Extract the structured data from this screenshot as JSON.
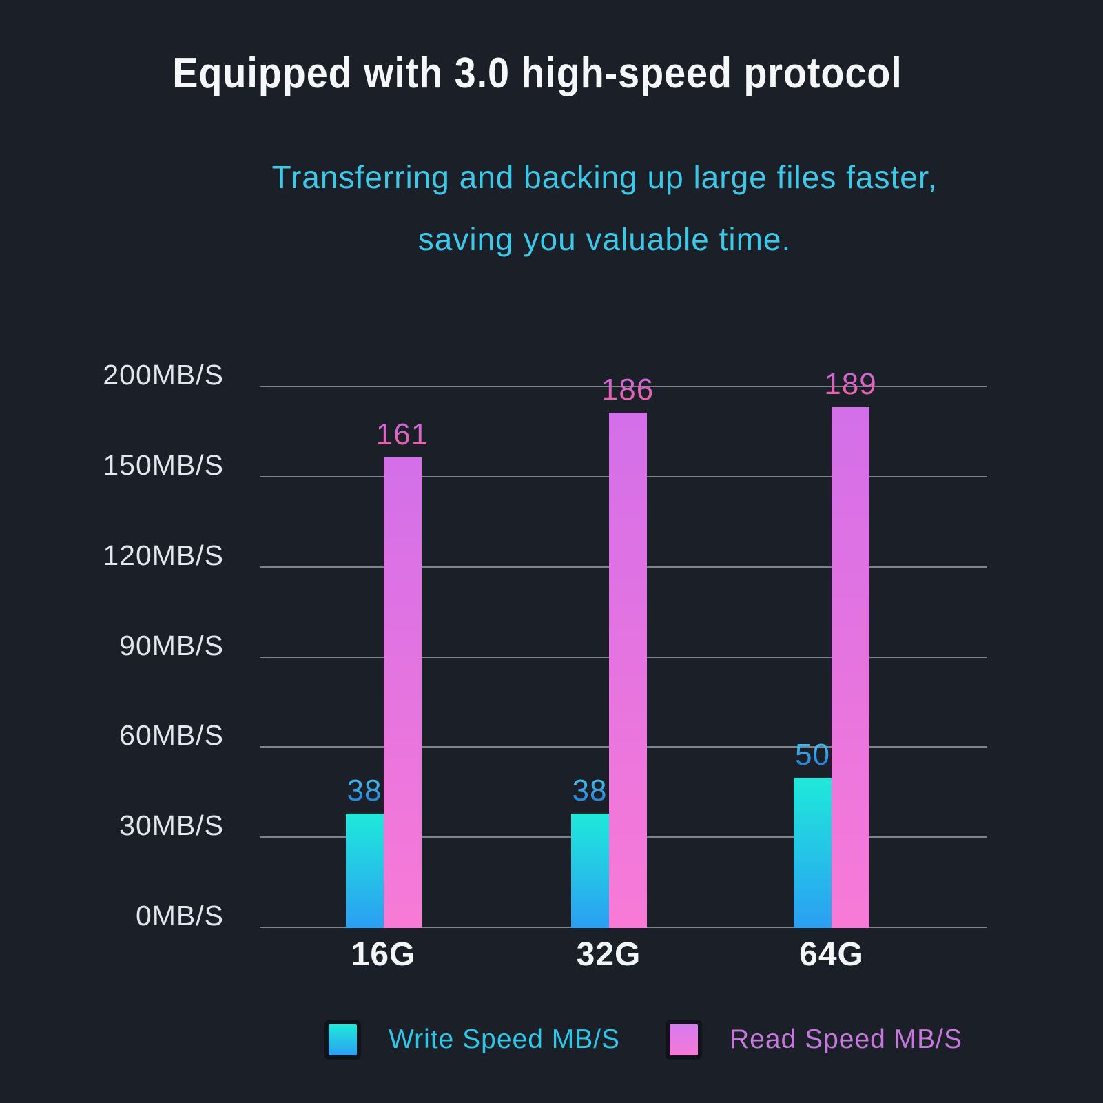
{
  "chart_data": {
    "type": "bar",
    "title": "Equipped with 3.0 high-speed protocol",
    "subtitle_lines": [
      "Transferring and backing up large files faster,",
      "saving you valuable time."
    ],
    "categories": [
      "16G",
      "32G",
      "64G"
    ],
    "series": [
      {
        "name": "Write Speed MB/S",
        "values": [
          38,
          38,
          50
        ],
        "bar_gradient_top": "#1fe9da",
        "bar_gradient_bottom": "#2b9ff3",
        "label_gradient_top": "#45c8f0",
        "label_gradient_bottom": "#2176d8"
      },
      {
        "name": "Read Speed MB/S",
        "values": [
          161,
          186,
          189
        ],
        "bar_gradient_top": "#d36fe9",
        "bar_gradient_bottom": "#f87ad6",
        "label_gradient_top": "#c76adf",
        "label_gradient_bottom": "#f0619f"
      }
    ],
    "y_axis": {
      "tick_values": [
        0,
        30,
        60,
        90,
        120,
        150,
        200
      ],
      "tick_labels": [
        "0MB/S",
        "30MB/S",
        "60MB/S",
        "90MB/S",
        "120MB/S",
        "150MB/S",
        "200MB/S"
      ],
      "scale_note": "tick marks evenly spaced despite non-uniform values"
    },
    "grid": true,
    "legend_position": "bottom",
    "colors": {
      "background": "#1b1f28",
      "title_text": "#f6f7f8",
      "subtitle_text": "#3bc9ea",
      "axis_text": "#e3e6ea",
      "gridline": "#8f97a1",
      "category_text": "#f3f5f7",
      "write_legend_text": "#2cc8ea",
      "read_legend_text": "#c678dd"
    }
  }
}
